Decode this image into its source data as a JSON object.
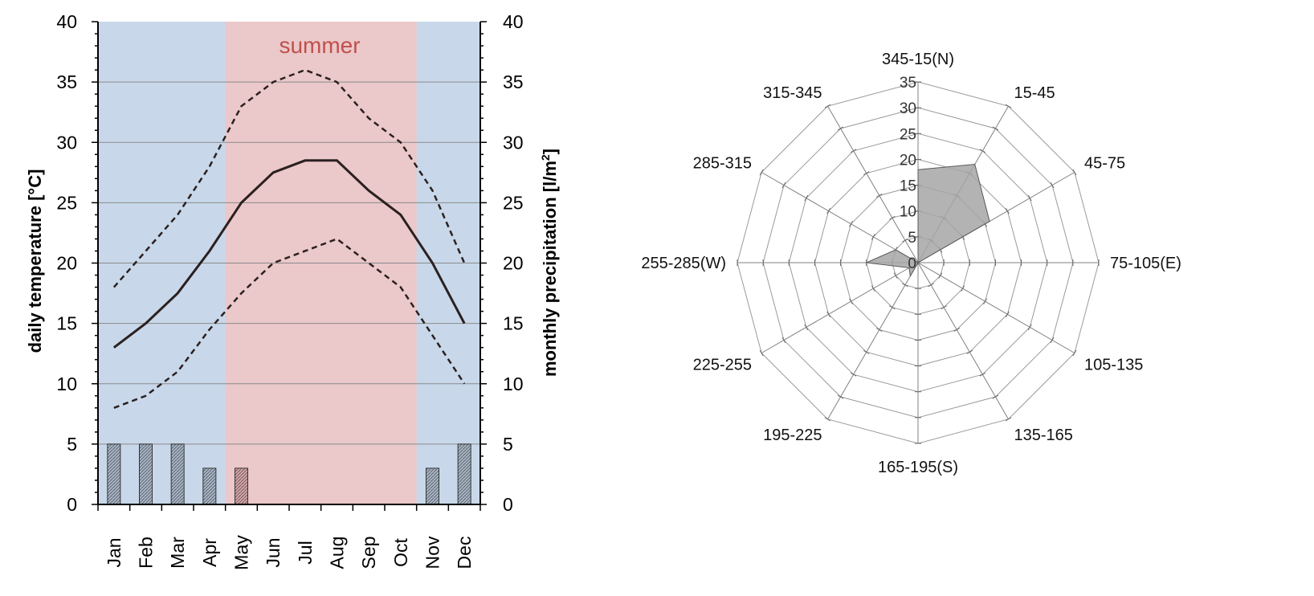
{
  "chart_data": [
    {
      "type": "bar",
      "title": "",
      "season_label": "summer",
      "categories": [
        "Jan",
        "Feb",
        "Mar",
        "Apr",
        "May",
        "Jun",
        "Jul",
        "Aug",
        "Sep",
        "Oct",
        "Nov",
        "Dec"
      ],
      "summer_months": [
        "May",
        "Jun",
        "Jul",
        "Aug",
        "Sep",
        "Oct"
      ],
      "ylabel_left": "daily temperature [°C]",
      "ylabel_right_base": "monthly precipitation [l/m",
      "ylabel_right_sup": "2",
      "ylabel_right_end": "]",
      "ylim": [
        0,
        40
      ],
      "yticks": [
        "0",
        "5",
        "10",
        "15",
        "20",
        "25",
        "30",
        "35",
        "40"
      ],
      "grid": true,
      "series": [
        {
          "kind": "line",
          "style": "solid",
          "values": [
            13,
            15,
            17.5,
            21,
            25,
            27.5,
            28.5,
            28.5,
            26,
            24,
            20,
            15
          ]
        },
        {
          "kind": "line",
          "style": "dashed",
          "values": [
            18,
            21,
            24,
            28,
            33,
            35,
            36,
            35,
            32,
            30,
            26,
            20
          ]
        },
        {
          "kind": "line",
          "style": "dashed",
          "values": [
            8,
            9,
            11,
            14.5,
            17.5,
            20,
            21,
            22,
            20,
            18,
            14,
            10
          ]
        },
        {
          "kind": "bar",
          "values": [
            5,
            5,
            5,
            3,
            3,
            0,
            0,
            0,
            0,
            0,
            3,
            5
          ]
        }
      ],
      "colors": {
        "winter_bg": "#c8d8ea",
        "summer_bg": "#ebc8c9",
        "summer_text": "#c0504d",
        "bar_winter": "#a5b5c8",
        "bar_summer": "#d8a2a4",
        "line": "#2b2020"
      }
    },
    {
      "type": "radar",
      "title": "",
      "directions": [
        "345-15(N)",
        "15-45",
        "45-75",
        "75-105(E)",
        "105-135",
        "135-165",
        "165-195(S)",
        "195-225",
        "225-255",
        "255-285(W)",
        "285-315",
        "315-345"
      ],
      "rings": [
        "0",
        "5",
        "10",
        "15",
        "20",
        "25",
        "30",
        "35"
      ],
      "rmax": 35,
      "values": [
        18,
        22,
        16,
        0,
        0,
        0,
        0,
        3,
        2,
        10,
        5,
        0
      ],
      "colors": {
        "fill": "#a6a6a6",
        "stroke": "#595959",
        "grid": "#9a9a9a"
      }
    }
  ]
}
